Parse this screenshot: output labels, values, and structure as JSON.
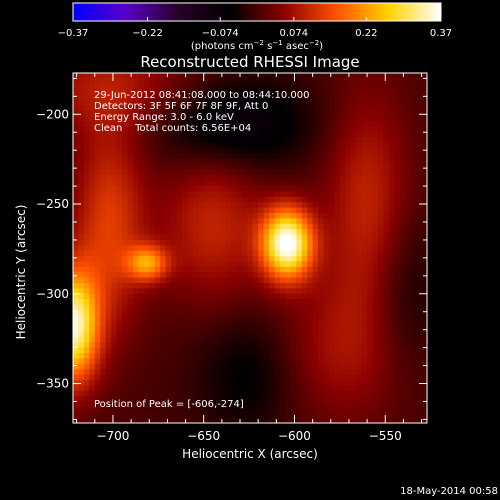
{
  "chart_data": {
    "type": "heatmap",
    "title": "Reconstructed RHESSI Image",
    "xlabel": "Heliocentric X (arcsec)",
    "ylabel": "Heliocentric Y (arcsec)",
    "xlim": [
      -722,
      -527
    ],
    "ylim": [
      -372,
      -177
    ],
    "xticks": [
      -700,
      -650,
      -600,
      -550
    ],
    "yticks": [
      -200,
      -250,
      -300,
      -350
    ],
    "xtick_labels": [
      "−700",
      "−650",
      "−600",
      "−550"
    ],
    "ytick_labels": [
      "−200",
      "−250",
      "−300",
      "−350"
    ],
    "colorbar": {
      "min": -0.37,
      "max": 0.37,
      "ticks": [
        -0.37,
        -0.22,
        -0.074,
        0.074,
        0.22,
        0.37
      ],
      "tick_labels": [
        "−0.37",
        "−0.22",
        "−0.074",
        "0.074",
        "0.22",
        "0.37"
      ],
      "unit_parts": [
        "(photons cm",
        "−2",
        " s",
        "−1",
        " asec",
        "−2",
        ")"
      ],
      "colors": [
        "#0000ff",
        "#5a00c8",
        "#280028",
        "#000000",
        "#8b0000",
        "#ff5000",
        "#ffd200",
        "#ffffff"
      ]
    },
    "info_lines": [
      "29-Jun-2012 08:41:08.000 to 08:44:10.000",
      "Detectors: 3F 5F 6F 7F 8F 9F, Att 0",
      "Energy Range: 3.0 - 6.0 keV",
      "Clean    Total counts: 6.56E+04"
    ],
    "peak_text": "Position of Peak = [-606,-274]",
    "sources": [
      {
        "x": -604,
        "y": -272,
        "amp": 0.37,
        "sx": 10,
        "sy": 14
      },
      {
        "x": -681,
        "y": -283,
        "amp": 0.19,
        "sx": 8,
        "sy": 7
      },
      {
        "x": -722,
        "y": -318,
        "amp": 0.34,
        "sx": 10,
        "sy": 22
      },
      {
        "x": -702,
        "y": -262,
        "amp": 0.13,
        "sx": 14,
        "sy": 40
      },
      {
        "x": -645,
        "y": -262,
        "amp": 0.1,
        "sx": 20,
        "sy": 30
      },
      {
        "x": -560,
        "y": -250,
        "amp": 0.1,
        "sx": 16,
        "sy": 45
      },
      {
        "x": -575,
        "y": -330,
        "amp": 0.07,
        "sx": 25,
        "sy": 30
      },
      {
        "x": -700,
        "y": -185,
        "amp": 0.08,
        "sx": 35,
        "sy": 18
      },
      {
        "x": -635,
        "y": -205,
        "amp": -0.1,
        "sx": 30,
        "sy": 18
      },
      {
        "x": -625,
        "y": -345,
        "amp": -0.06,
        "sx": 20,
        "sy": 25
      },
      {
        "x": -540,
        "y": -300,
        "amp": -0.05,
        "sx": 15,
        "sy": 30
      }
    ]
  },
  "footer": {
    "timestamp": "18-May-2014 00:58"
  }
}
